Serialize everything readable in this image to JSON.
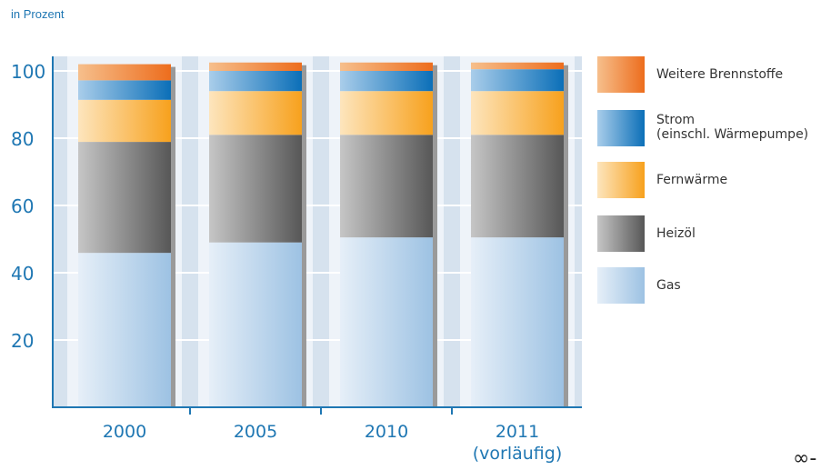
{
  "chart_data": {
    "type": "bar",
    "stacked": true,
    "unit_label": "in Prozent",
    "categories": [
      "2000",
      "2005",
      "2010",
      "2011\n(vorläufig)"
    ],
    "y_ticks": [
      "100",
      "80",
      "60",
      "40",
      "20"
    ],
    "ylim": [
      0,
      105
    ],
    "grid": true,
    "legend_position": "right",
    "series": [
      {
        "name": "Gas",
        "values": [
          45.9,
          49.0,
          50.5,
          50.5
        ],
        "color_light": "#e6eff8",
        "color_dark": "#9dc2e3"
      },
      {
        "name": "Heizöl",
        "values": [
          33.0,
          32.0,
          30.5,
          30.5
        ],
        "color_light": "#c6c6c6",
        "color_dark": "#575757"
      },
      {
        "name": "Fernwärme",
        "values": [
          12.5,
          13.0,
          13.0,
          13.0
        ],
        "color_light": "#fde5bd",
        "color_dark": "#f7a11d"
      },
      {
        "name": "Strom\n(einschl. Wärmepumpe)",
        "values": [
          5.8,
          6.0,
          6.0,
          6.5
        ],
        "color_light": "#a9cdea",
        "color_dark": "#0b6fb8"
      },
      {
        "name": "Weitere Brennstoffe",
        "values": [
          4.8,
          2.5,
          2.5,
          2.0
        ],
        "color_light": "#f6bf8c",
        "color_dark": "#ed6d1d"
      }
    ]
  },
  "colors": {
    "axis": "#1f77b3",
    "plot_background": "#d6e2ee",
    "column_background": "#eef3f9",
    "bar_shadow": "#9a9a9a"
  },
  "logo": {
    "icon": "infinity-logo-icon",
    "glyph": "∞-"
  }
}
